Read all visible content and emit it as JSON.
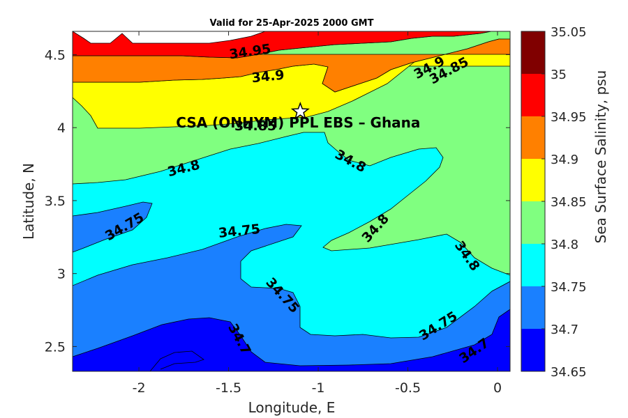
{
  "chart_data": {
    "type": "contour",
    "title": "Valid for 25-Apr-2025 2000 GMT",
    "xlabel": "Longitude, E",
    "ylabel": "Latitude, N",
    "xlim": [
      -2.37,
      0.07
    ],
    "ylim": [
      2.33,
      4.66
    ],
    "xticks": [
      "-2",
      "-1.5",
      "-1",
      "-0.5",
      "0"
    ],
    "yticks": [
      "2.5",
      "3",
      "3.5",
      "4",
      "4.5"
    ],
    "colorbar": {
      "label": "Sea Surface Salinity, psu",
      "levels": [
        "34.65",
        "34.7",
        "34.75",
        "34.8",
        "34.85",
        "34.9",
        "34.95",
        "35",
        "35.05"
      ],
      "colors": [
        "#0000ff",
        "#1a80ff",
        "#00ffff",
        "#80ff80",
        "#ffff00",
        "#ff8000",
        "#ff0000",
        "#800000"
      ]
    },
    "contour_labels": [
      {
        "text": "34.95",
        "lon": -1.38,
        "lat": 4.52,
        "angle": -8
      },
      {
        "text": "34.9",
        "lon": -1.28,
        "lat": 4.35,
        "angle": -6
      },
      {
        "text": "34.9",
        "lon": -0.38,
        "lat": 4.41,
        "angle": -28
      },
      {
        "text": "34.85",
        "lon": -0.27,
        "lat": 4.39,
        "angle": -28
      },
      {
        "text": "34.85",
        "lon": -1.35,
        "lat": 4.01,
        "angle": 0
      },
      {
        "text": "34.8",
        "lon": -1.75,
        "lat": 3.72,
        "angle": -14
      },
      {
        "text": "34.8",
        "lon": -0.82,
        "lat": 3.77,
        "angle": 28
      },
      {
        "text": "34.8",
        "lon": -0.68,
        "lat": 3.31,
        "angle": -48
      },
      {
        "text": "34.8",
        "lon": -0.17,
        "lat": 3.12,
        "angle": 55
      },
      {
        "text": "34.75",
        "lon": -2.08,
        "lat": 3.32,
        "angle": -30
      },
      {
        "text": "34.75",
        "lon": -1.44,
        "lat": 3.29,
        "angle": -6
      },
      {
        "text": "34.75",
        "lon": -1.2,
        "lat": 2.85,
        "angle": 48
      },
      {
        "text": "34.75",
        "lon": -0.33,
        "lat": 2.64,
        "angle": -32
      },
      {
        "text": "34.7",
        "lon": -1.44,
        "lat": 2.55,
        "angle": 62
      },
      {
        "text": "34.7",
        "lon": -0.13,
        "lat": 2.47,
        "angle": -35
      }
    ],
    "site": {
      "name": "CSA (ONHYM) PPL EBS  – Ghana",
      "lon": -1.1,
      "lat": 4.11
    }
  }
}
